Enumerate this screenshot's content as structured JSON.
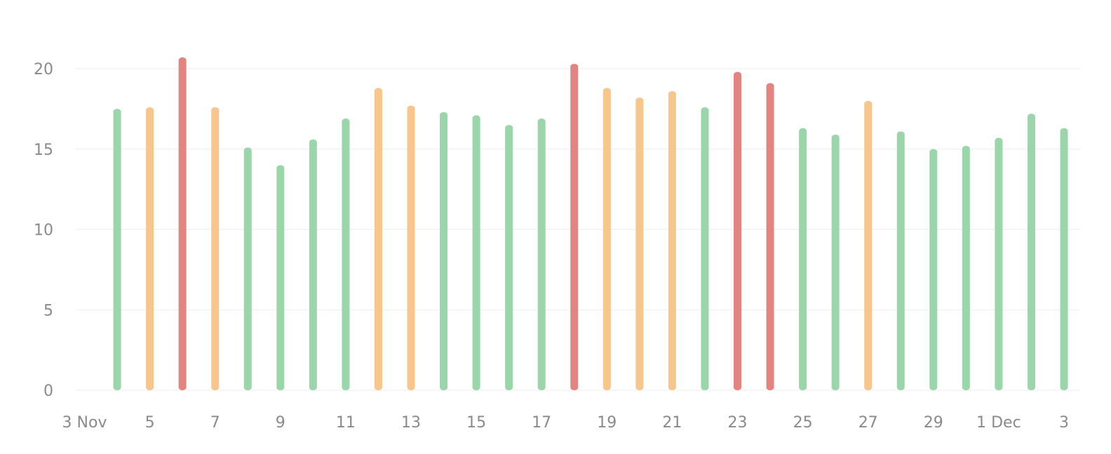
{
  "chart_data": {
    "type": "bar",
    "title": "",
    "xlabel": "",
    "ylabel": "",
    "ylim": [
      0,
      22
    ],
    "grid": true,
    "y_ticks": [
      0,
      5,
      10,
      15,
      20
    ],
    "categories": [
      "4 Nov",
      "5 Nov",
      "6 Nov",
      "7 Nov",
      "8 Nov",
      "9 Nov",
      "10 Nov",
      "11 Nov",
      "12 Nov",
      "13 Nov",
      "14 Nov",
      "15 Nov",
      "16 Nov",
      "17 Nov",
      "18 Nov",
      "19 Nov",
      "20 Nov",
      "21 Nov",
      "22 Nov",
      "23 Nov",
      "24 Nov",
      "25 Nov",
      "26 Nov",
      "27 Nov",
      "28 Nov",
      "29 Nov",
      "30 Nov",
      "1 Dec",
      "2 Dec",
      "3 Dec"
    ],
    "values": [
      17.5,
      17.6,
      20.7,
      17.6,
      15.1,
      14.0,
      15.6,
      16.9,
      18.8,
      17.7,
      17.3,
      17.1,
      16.5,
      16.9,
      20.3,
      18.8,
      18.2,
      18.6,
      17.6,
      19.8,
      19.1,
      16.3,
      15.9,
      18.0,
      16.1,
      15.0,
      15.2,
      15.7,
      17.2,
      16.3
    ],
    "status": [
      "green",
      "orange",
      "red",
      "orange",
      "green",
      "green",
      "green",
      "green",
      "orange",
      "orange",
      "green",
      "green",
      "green",
      "green",
      "red",
      "orange",
      "orange",
      "orange",
      "green",
      "red",
      "red",
      "green",
      "green",
      "orange",
      "green",
      "green",
      "green",
      "green",
      "green",
      "green"
    ],
    "x_tick_labels": [
      "3 Nov",
      "5",
      "7",
      "9",
      "11",
      "13",
      "15",
      "17",
      "19",
      "21",
      "23",
      "25",
      "27",
      "29",
      "1 Dec",
      "3"
    ],
    "x_tick_day_offsets": [
      0,
      2,
      4,
      6,
      8,
      10,
      12,
      14,
      16,
      18,
      20,
      22,
      24,
      26,
      28,
      30
    ],
    "colors": {
      "green": "#9ad6aa",
      "orange": "#f6c68c",
      "red": "#e48481",
      "grid": "#eeeeee",
      "tick_label": "#8a8a8a"
    }
  }
}
